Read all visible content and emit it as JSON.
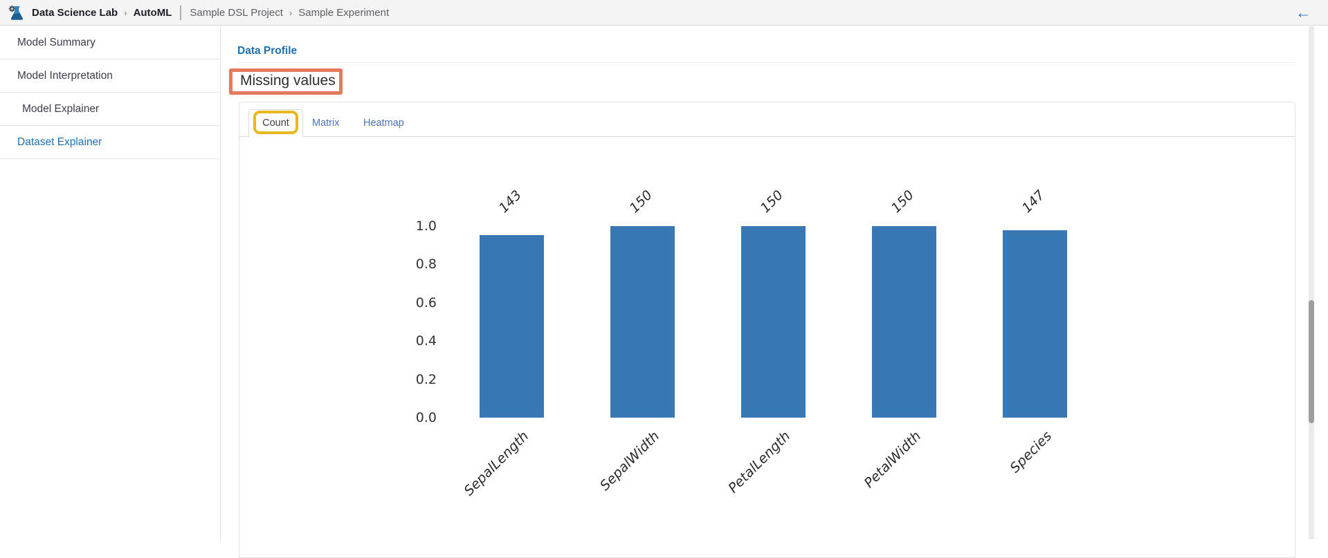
{
  "topbar": {
    "brand": "Data Science Lab",
    "app_name": "AutoML",
    "breadcrumb_separator": "›",
    "project_name": "Sample DSL Project",
    "experiment_name": "Sample Experiment",
    "back_icon": "←"
  },
  "sidebar": {
    "items": [
      {
        "label": "Model Summary",
        "active": false,
        "indent": false
      },
      {
        "label": "Model Interpretation",
        "active": false,
        "indent": false
      },
      {
        "label": "Model Explainer",
        "active": false,
        "indent": true
      },
      {
        "label": "Dataset Explainer",
        "active": true,
        "indent": false
      }
    ]
  },
  "main": {
    "data_profile_link": "Data Profile",
    "section_title": "Missing values",
    "tabs": [
      {
        "label": "Count",
        "active": true
      },
      {
        "label": "Matrix",
        "active": false
      },
      {
        "label": "Heatmap",
        "active": false
      }
    ]
  },
  "chart_data": {
    "type": "bar",
    "title": "",
    "xlabel": "",
    "ylabel": "",
    "categories": [
      "SepalLength",
      "SepalWidth",
      "PetalLength",
      "PetalWidth",
      "Species"
    ],
    "values": [
      143,
      150,
      150,
      150,
      147
    ],
    "value_denominator": 150,
    "normalized_heights": [
      0.953,
      1.0,
      1.0,
      1.0,
      0.98
    ],
    "bar_top_labels": [
      "143",
      "150",
      "150",
      "150",
      "147"
    ],
    "ytick_labels": [
      "0.0",
      "0.2",
      "0.4",
      "0.6",
      "0.8",
      "1.0"
    ],
    "ylim": [
      0.0,
      1.0
    ],
    "bar_color": "#3879b5",
    "grid": false,
    "legend": "none"
  },
  "annotations": {
    "section_highlight": {
      "target": "Missing values",
      "color": "#e7795b"
    },
    "tab_highlight": {
      "target": "Count",
      "color": "#eab81e"
    }
  },
  "colors": {
    "link_blue": "#1c6fad",
    "tab_link_blue": "#4a72c4",
    "topbar_bg": "#f4f4f4",
    "bar_color": "#3879b5",
    "back_arrow_blue": "#2173c2"
  }
}
